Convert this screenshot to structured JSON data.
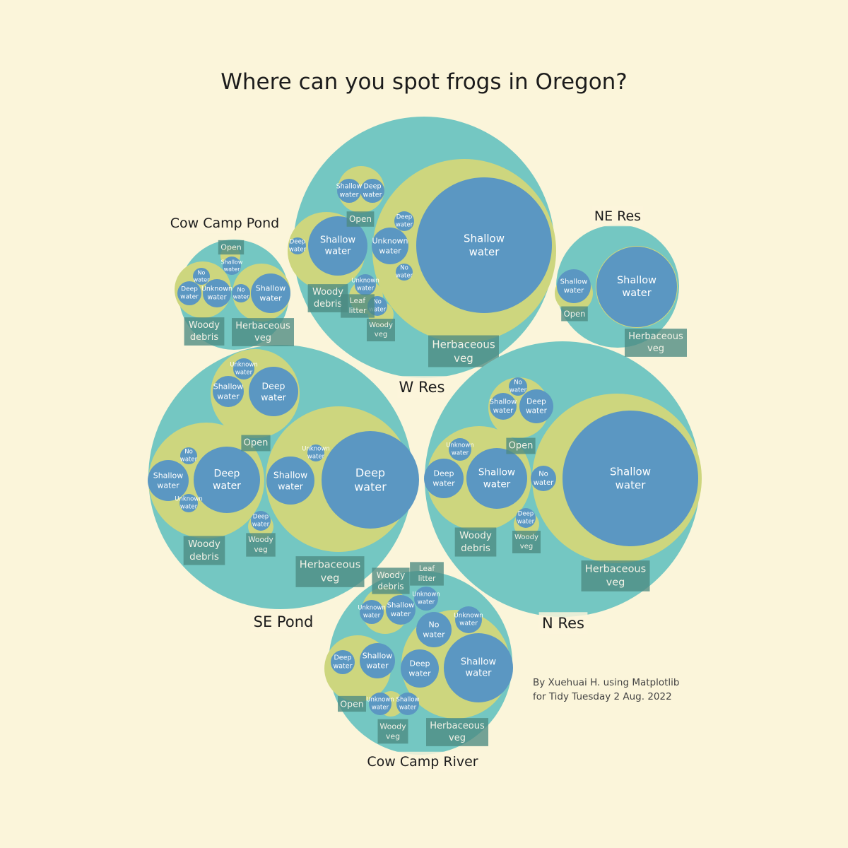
{
  "title": "Where can you spot frogs in Oregon?",
  "credit": [
    "By Xuehuai H. using Matplotlib",
    "for Tidy Tuesday 2 Aug. 2022"
  ],
  "colors": {
    "background": "#fbf5da",
    "site": "#74c7c2",
    "habitat": "#cdd67e",
    "water": "#5b97c2",
    "label_box": "#4d8a82",
    "water_text": "#ffffff"
  },
  "chart_data": {
    "type": "circle-packing",
    "hierarchy": [
      "Site",
      "HabType",
      "Water"
    ],
    "sites": [
      {
        "name": "W Res",
        "habitats": [
          {
            "name": "Herbaceous veg",
            "water": [
              "Shallow water",
              "Deep water",
              "Unknown water",
              "No water"
            ]
          },
          {
            "name": "Woody debris",
            "water": [
              "Shallow water",
              "Deep water"
            ]
          },
          {
            "name": "Open",
            "water": [
              "Shallow water",
              "Deep water"
            ]
          },
          {
            "name": "Leaf litter",
            "water": [
              "Unknown water",
              "No water"
            ]
          },
          {
            "name": "Woody veg",
            "water": [
              "No water"
            ]
          }
        ]
      },
      {
        "name": "N Res",
        "habitats": [
          {
            "name": "Herbaceous veg",
            "water": [
              "Shallow water",
              "No water",
              "Deep water"
            ]
          },
          {
            "name": "Woody debris",
            "water": [
              "Shallow water",
              "Deep water",
              "Unknown water"
            ]
          },
          {
            "name": "Open",
            "water": [
              "Deep water",
              "Shallow water",
              "No water"
            ]
          },
          {
            "name": "Woody veg",
            "water": [
              "Deep water"
            ]
          }
        ]
      },
      {
        "name": "SE Pond",
        "habitats": [
          {
            "name": "Herbaceous veg",
            "water": [
              "Deep water",
              "Shallow water",
              "Unknown water"
            ]
          },
          {
            "name": "Woody debris",
            "water": [
              "Deep water",
              "Shallow water",
              "No water",
              "Unknown water"
            ]
          },
          {
            "name": "Open",
            "water": [
              "Deep water",
              "Shallow water",
              "Unknown water"
            ]
          },
          {
            "name": "Woody veg",
            "water": [
              "Deep water"
            ]
          }
        ]
      },
      {
        "name": "Cow Camp River",
        "habitats": [
          {
            "name": "Herbaceous veg",
            "water": [
              "Shallow water",
              "Deep water",
              "No water",
              "Unknown water"
            ]
          },
          {
            "name": "Woody debris",
            "water": [
              "Shallow water",
              "Unknown water"
            ]
          },
          {
            "name": "Open",
            "water": [
              "Shallow water",
              "Deep water"
            ]
          },
          {
            "name": "Leaf litter",
            "water": [
              "Unknown water"
            ]
          },
          {
            "name": "Woody veg",
            "water": [
              "Unknown water",
              "Shallow water"
            ]
          }
        ]
      },
      {
        "name": "Cow Camp Pond",
        "habitats": [
          {
            "name": "Herbaceous veg",
            "water": [
              "Shallow water",
              "No water"
            ]
          },
          {
            "name": "Woody debris",
            "water": [
              "Deep water",
              "Unknown water",
              "No water"
            ]
          },
          {
            "name": "Open",
            "water": [
              "Shallow water"
            ]
          }
        ]
      },
      {
        "name": "NE Res",
        "habitats": [
          {
            "name": "Herbaceous veg",
            "water": [
              "Shallow water"
            ]
          },
          {
            "name": "Open",
            "water": [
              "Shallow water"
            ]
          }
        ]
      }
    ]
  }
}
